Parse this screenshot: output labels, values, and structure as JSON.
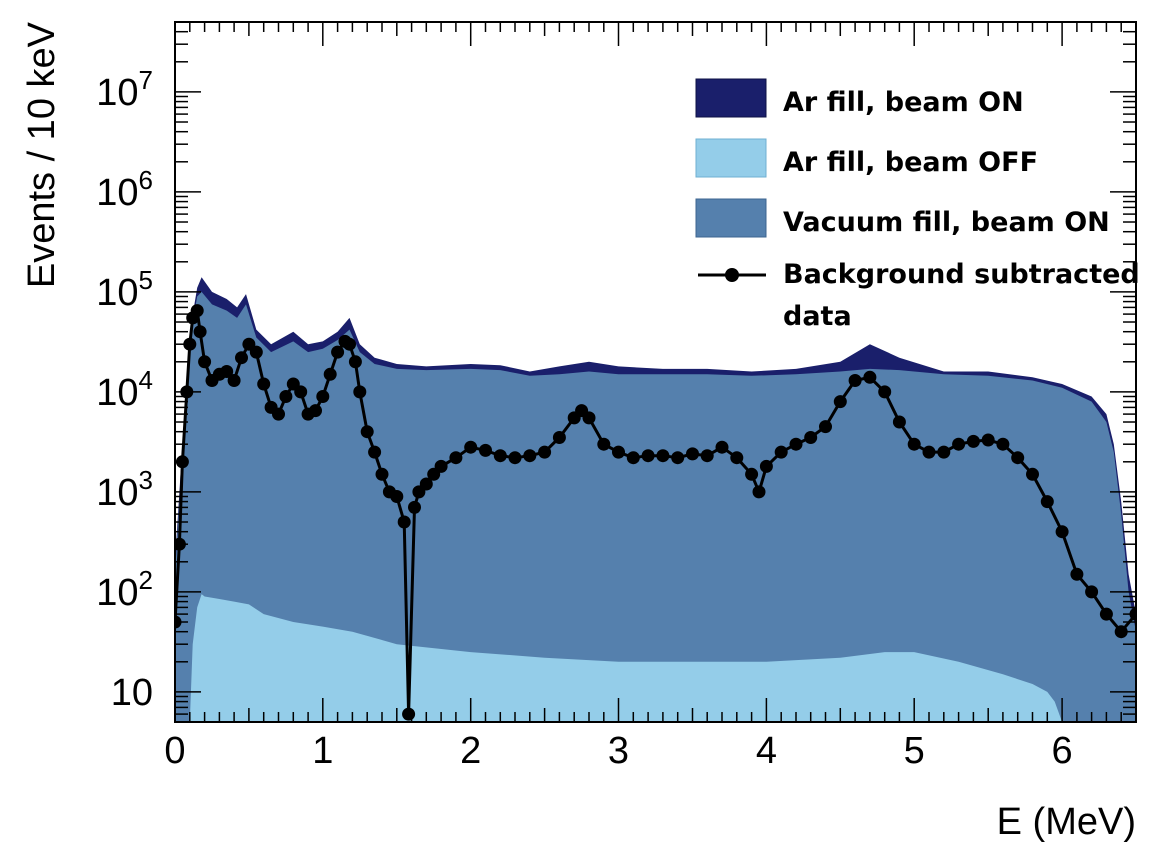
{
  "chart_data": {
    "type": "area",
    "title": "",
    "xlabel": "E (MeV)",
    "ylabel": "Events / 10 keV",
    "xlim": [
      0,
      6.5
    ],
    "ylim": [
      5,
      50000000
    ],
    "yscale": "log",
    "x_ticks": [
      0,
      1,
      2,
      3,
      4,
      5,
      6
    ],
    "x_tick_labels": [
      "0",
      "1",
      "2",
      "3",
      "4",
      "5",
      "6"
    ],
    "y_ticks": [
      10,
      100,
      1000,
      10000,
      100000,
      1000000,
      10000000
    ],
    "y_tick_labels": [
      {
        "base": "10",
        "exp": ""
      },
      {
        "base": "10",
        "exp": "2"
      },
      {
        "base": "10",
        "exp": "3"
      },
      {
        "base": "10",
        "exp": "4"
      },
      {
        "base": "10",
        "exp": "5"
      },
      {
        "base": "10",
        "exp": "6"
      },
      {
        "base": "10",
        "exp": "7"
      }
    ],
    "grid": false,
    "legend_position": "top-right",
    "series": [
      {
        "name": "Ar fill, beam ON",
        "style": "filled-area",
        "color": "#1a1f6b",
        "x": [
          0.0,
          0.05,
          0.1,
          0.15,
          0.18,
          0.25,
          0.35,
          0.42,
          0.48,
          0.55,
          0.65,
          0.8,
          0.9,
          1.0,
          1.1,
          1.18,
          1.25,
          1.35,
          1.5,
          1.7,
          2.0,
          2.2,
          2.4,
          2.6,
          2.8,
          3.0,
          3.3,
          3.6,
          3.9,
          4.2,
          4.5,
          4.7,
          4.9,
          5.2,
          5.5,
          5.8,
          6.0,
          6.2,
          6.3,
          6.35,
          6.4,
          6.45,
          6.5
        ],
        "values": [
          200,
          3000,
          40000,
          110000,
          140000,
          100000,
          85000,
          70000,
          95000,
          42000,
          30000,
          40000,
          30000,
          32000,
          40000,
          55000,
          30000,
          22000,
          19000,
          18000,
          19000,
          18500,
          16000,
          18000,
          20000,
          18000,
          17000,
          17000,
          16000,
          17000,
          20000,
          30000,
          22000,
          16000,
          16000,
          14000,
          12000,
          9000,
          6000,
          3000,
          800,
          150,
          60
        ]
      },
      {
        "name": "Vacuum fill, beam ON",
        "style": "filled-area",
        "color": "#5580ad",
        "x": [
          0.0,
          0.05,
          0.1,
          0.15,
          0.18,
          0.25,
          0.35,
          0.42,
          0.48,
          0.55,
          0.65,
          0.8,
          0.9,
          1.0,
          1.1,
          1.18,
          1.25,
          1.35,
          1.5,
          1.7,
          2.0,
          2.2,
          2.4,
          2.6,
          2.8,
          3.0,
          3.3,
          3.6,
          3.9,
          4.2,
          4.5,
          4.7,
          4.9,
          5.2,
          5.5,
          5.8,
          6.0,
          6.2,
          6.3,
          6.35,
          6.4,
          6.45,
          6.5
        ],
        "values": [
          150,
          2500,
          35000,
          90000,
          100000,
          75000,
          65000,
          55000,
          75000,
          35000,
          25000,
          32000,
          25000,
          27000,
          33000,
          42000,
          25000,
          19000,
          17000,
          16500,
          17000,
          16500,
          14500,
          15000,
          16000,
          15000,
          15000,
          15000,
          14500,
          15000,
          16000,
          17000,
          16500,
          15000,
          14500,
          13000,
          11000,
          8000,
          5000,
          2500,
          600,
          100,
          40
        ]
      },
      {
        "name": "Ar fill, beam OFF",
        "style": "filled-area",
        "color": "#94cde9",
        "x": [
          0.1,
          0.12,
          0.15,
          0.18,
          0.2,
          0.3,
          0.4,
          0.5,
          0.6,
          0.8,
          1.0,
          1.2,
          1.5,
          2.0,
          2.5,
          3.0,
          3.5,
          4.0,
          4.5,
          4.8,
          5.0,
          5.3,
          5.6,
          5.8,
          5.9,
          5.95,
          6.0
        ],
        "values": [
          5,
          30,
          70,
          95,
          90,
          85,
          80,
          75,
          60,
          50,
          45,
          40,
          30,
          25,
          22,
          20,
          20,
          20,
          22,
          25,
          25,
          20,
          15,
          12,
          10,
          8,
          5
        ]
      },
      {
        "name": "Background subtracted data",
        "style": "markers-line",
        "color": "#000000",
        "x": [
          0.0,
          0.03,
          0.05,
          0.08,
          0.1,
          0.12,
          0.15,
          0.17,
          0.2,
          0.25,
          0.3,
          0.35,
          0.4,
          0.45,
          0.5,
          0.55,
          0.6,
          0.65,
          0.7,
          0.75,
          0.8,
          0.85,
          0.9,
          0.95,
          1.0,
          1.05,
          1.1,
          1.15,
          1.18,
          1.22,
          1.25,
          1.3,
          1.35,
          1.4,
          1.45,
          1.5,
          1.55,
          1.58,
          1.62,
          1.65,
          1.7,
          1.75,
          1.8,
          1.9,
          2.0,
          2.1,
          2.2,
          2.3,
          2.4,
          2.5,
          2.6,
          2.7,
          2.75,
          2.8,
          2.9,
          3.0,
          3.1,
          3.2,
          3.3,
          3.4,
          3.5,
          3.6,
          3.7,
          3.8,
          3.9,
          3.95,
          4.0,
          4.1,
          4.2,
          4.3,
          4.4,
          4.5,
          4.6,
          4.7,
          4.8,
          4.9,
          5.0,
          5.1,
          5.2,
          5.3,
          5.4,
          5.5,
          5.6,
          5.7,
          5.8,
          5.9,
          6.0,
          6.1,
          6.2,
          6.3,
          6.4,
          6.5
        ],
        "values": [
          50,
          300,
          2000,
          10000,
          30000,
          55000,
          65000,
          40000,
          20000,
          13000,
          15000,
          16000,
          13000,
          22000,
          30000,
          25000,
          12000,
          7000,
          6000,
          9000,
          12000,
          10000,
          6000,
          6500,
          9000,
          15000,
          25000,
          32000,
          30000,
          20000,
          10000,
          4000,
          2500,
          1500,
          1000,
          900,
          500,
          6,
          700,
          1000,
          1200,
          1500,
          1800,
          2200,
          2800,
          2600,
          2300,
          2200,
          2300,
          2500,
          3500,
          5500,
          6500,
          5500,
          3000,
          2500,
          2200,
          2300,
          2300,
          2200,
          2400,
          2300,
          2800,
          2200,
          1500,
          1000,
          1800,
          2500,
          3000,
          3500,
          4500,
          8000,
          13000,
          14000,
          10000,
          5000,
          3000,
          2500,
          2500,
          3000,
          3200,
          3300,
          3000,
          2200,
          1500,
          800,
          400,
          150,
          100,
          60,
          40,
          60
        ]
      }
    ]
  },
  "legend": {
    "items": [
      {
        "label": "Ar fill, beam ON",
        "color": "#1a1f6b"
      },
      {
        "label": "Ar fill, beam OFF",
        "color": "#94cde9"
      },
      {
        "label": "Vacuum fill, beam ON",
        "color": "#5580ad"
      },
      {
        "label": "Background subtracted",
        "label2": "data",
        "color": "#000000"
      }
    ]
  }
}
